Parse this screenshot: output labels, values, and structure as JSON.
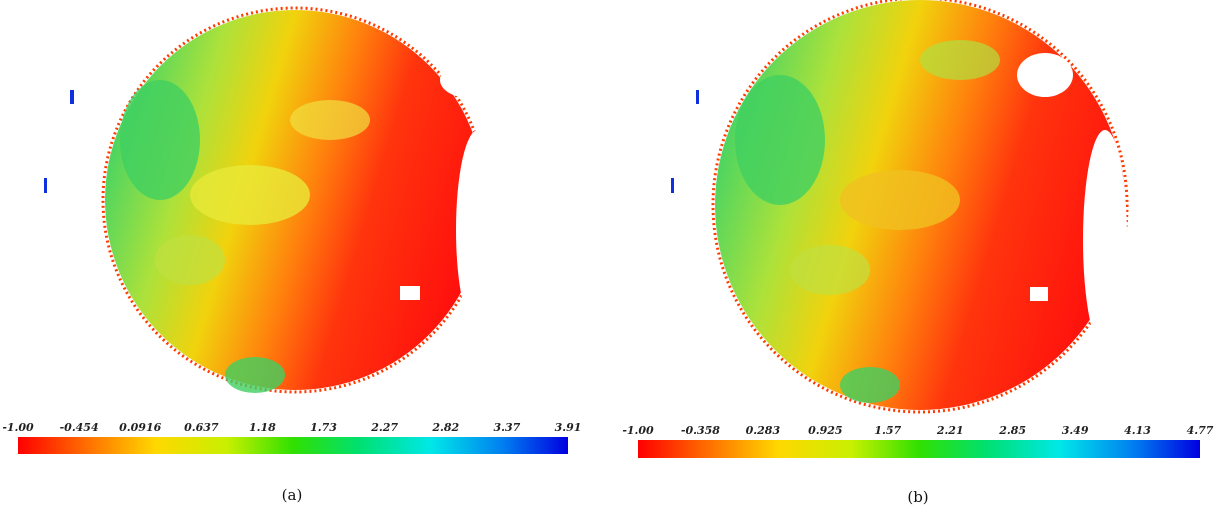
{
  "panels": [
    {
      "caption": "(a)",
      "colorbar": {
        "ticks": [
          "-1.00",
          "-0.454",
          "0.0916",
          "0.637",
          "1.18",
          "1.73",
          "2.27",
          "2.82",
          "3.37",
          "3.91"
        ]
      }
    },
    {
      "caption": "(b)",
      "colorbar": {
        "ticks": [
          "-1.00",
          "-0.358",
          "0.283",
          "0.925",
          "1.57",
          "2.21",
          "2.85",
          "3.49",
          "4.13",
          "4.77"
        ]
      }
    }
  ]
}
